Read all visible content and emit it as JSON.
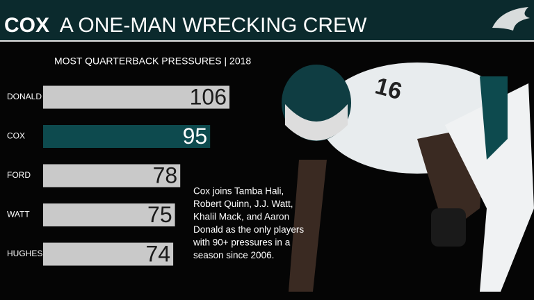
{
  "chart_data": {
    "type": "hbar",
    "title_bold": "COX",
    "title": "A ONE-MAN WRECKING CREW",
    "subtitle": "MOST QUARTERBACK PRESSURES | 2018",
    "categories": [
      "DONALD",
      "COX",
      "FORD",
      "WATT",
      "HUGHES"
    ],
    "values": [
      106,
      95,
      78,
      75,
      74
    ],
    "colors": [
      "#c9c9c9",
      "#0d4a4e",
      "#c9c9c9",
      "#c9c9c9",
      "#c9c9c9"
    ],
    "annotation": [
      "Cox joins Tamba Hali,",
      "Robert Quinn, J.J. Watt,",
      "Khalil Mack, and Aaron",
      "Donald as the only players",
      "with 90+ pressures in a",
      "season since 2006."
    ]
  }
}
